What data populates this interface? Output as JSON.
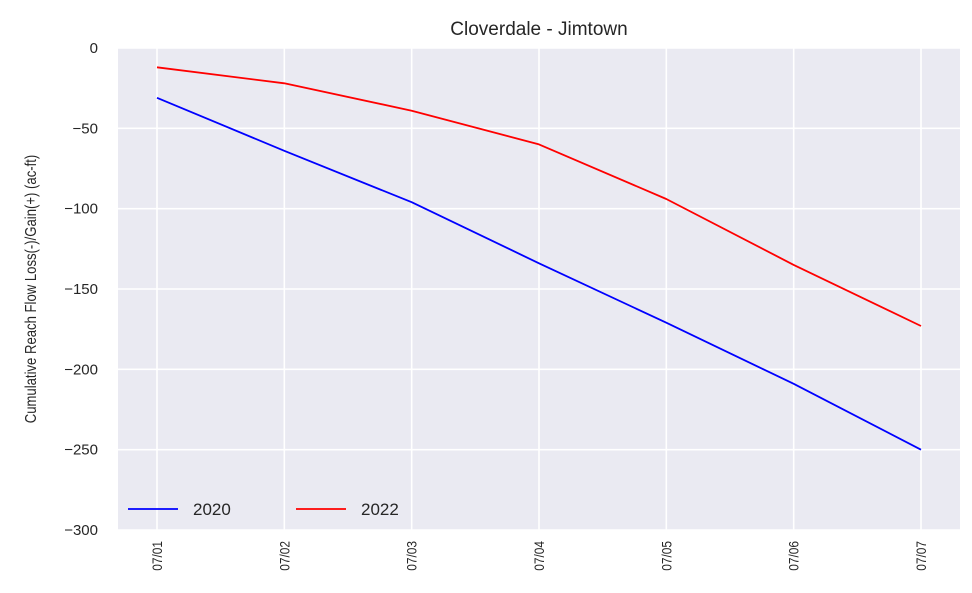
{
  "chart_data": {
    "type": "line",
    "title": "Cloverdale - Jimtown",
    "xlabel": "",
    "ylabel": "Cumulative Reach Flow Loss(-)/Gain(+) (ac-ft)",
    "x": [
      "07/01",
      "07/02",
      "07/03",
      "07/04",
      "07/05",
      "07/06",
      "07/07"
    ],
    "ylim": [
      -300,
      0
    ],
    "yticks": [
      0,
      -50,
      -100,
      -150,
      -200,
      -250,
      -300
    ],
    "ytick_labels": [
      "0",
      "−50",
      "−100",
      "−150",
      "−200",
      "−250",
      "−300"
    ],
    "grid": true,
    "legend_position": "lower-left",
    "series": [
      {
        "name": "2020",
        "color": "#0000ff",
        "values": [
          -31,
          -64,
          -96,
          -134,
          -171,
          -209,
          -250
        ]
      },
      {
        "name": "2022",
        "color": "#ff0000",
        "values": [
          -12,
          -22,
          -39,
          -60,
          -94,
          -135,
          -173
        ]
      }
    ]
  }
}
